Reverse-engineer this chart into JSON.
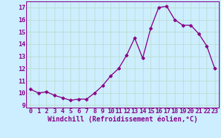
{
  "x": [
    0,
    1,
    2,
    3,
    4,
    5,
    6,
    7,
    8,
    9,
    10,
    11,
    12,
    13,
    14,
    15,
    16,
    17,
    18,
    19,
    20,
    21,
    22,
    23
  ],
  "y": [
    10.3,
    10.0,
    10.1,
    9.8,
    9.6,
    9.4,
    9.5,
    9.5,
    10.0,
    10.6,
    11.4,
    12.0,
    13.1,
    14.5,
    12.85,
    15.3,
    17.0,
    17.1,
    16.0,
    15.55,
    15.55,
    14.85,
    13.85,
    12.0
  ],
  "line_color": "#880088",
  "marker": "D",
  "marker_size": 2.5,
  "line_width": 1.0,
  "bg_color": "#cceeff",
  "grid_color": "#aaddcc",
  "xlabel": "Windchill (Refroidissement éolien,°C)",
  "yticks": [
    9,
    10,
    11,
    12,
    13,
    14,
    15,
    16,
    17
  ],
  "xlim": [
    -0.5,
    23.5
  ],
  "ylim": [
    8.8,
    17.5
  ],
  "xlabel_fontsize": 7,
  "tick_fontsize": 6.5,
  "tick_color": "#880088",
  "label_color": "#880088",
  "spine_color": "#880088"
}
